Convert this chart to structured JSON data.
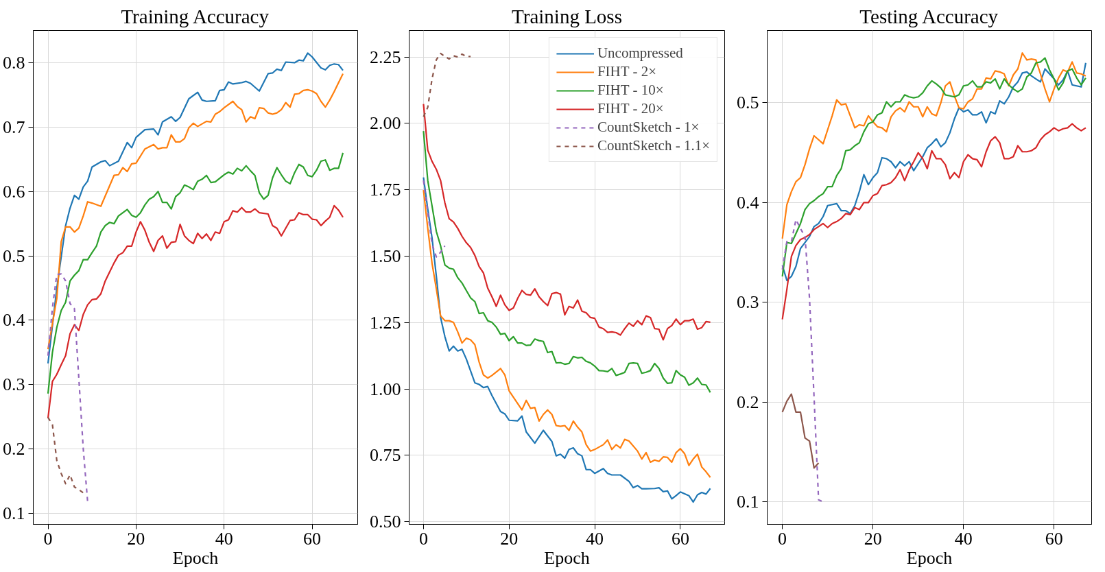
{
  "chart_data": [
    {
      "type": "line",
      "title": "Training Accuracy",
      "xlabel": "Epoch",
      "xlim": [
        -3.35,
        70.35
      ],
      "ylim": [
        0.083,
        0.85
      ],
      "xticks": [
        0,
        20,
        40,
        60
      ],
      "yticks": [
        0.1,
        0.2,
        0.3,
        0.4,
        0.5,
        0.6,
        0.7,
        0.8
      ],
      "grid": true,
      "legend": false,
      "line_style": "solid",
      "series": [
        {
          "color": "#1f77b4",
          "x": [
            0,
            2,
            4,
            5,
            6,
            7,
            8,
            9,
            10,
            12,
            13,
            14,
            16,
            18,
            19,
            20,
            22,
            24,
            25,
            26,
            28,
            29,
            30,
            32,
            34,
            35,
            36,
            38,
            39,
            40,
            41,
            42,
            44,
            45,
            46,
            48,
            50,
            51,
            52,
            53,
            54,
            56,
            57,
            58,
            59,
            60,
            62,
            63,
            64,
            65,
            66,
            67
          ],
          "values": [
            0.333,
            0.45,
            0.547,
            0.574,
            0.594,
            0.588,
            0.607,
            0.616,
            0.638,
            0.646,
            0.648,
            0.64,
            0.647,
            0.676,
            0.668,
            0.684,
            0.696,
            0.697,
            0.688,
            0.708,
            0.716,
            0.709,
            0.715,
            0.744,
            0.754,
            0.742,
            0.74,
            0.741,
            0.757,
            0.758,
            0.77,
            0.767,
            0.769,
            0.771,
            0.768,
            0.756,
            0.783,
            0.784,
            0.79,
            0.788,
            0.801,
            0.8,
            0.804,
            0.803,
            0.815,
            0.809,
            0.792,
            0.789,
            0.796,
            0.798,
            0.797,
            0.788
          ]
        },
        {
          "color": "#ff7f0e",
          "x": [
            0,
            2,
            3,
            4,
            5,
            6,
            7,
            8,
            9,
            10,
            12,
            14,
            15,
            16,
            17,
            18,
            19,
            20,
            22,
            24,
            25,
            26,
            27,
            28,
            29,
            30,
            31,
            32,
            33,
            34,
            36,
            37,
            38,
            39,
            40,
            42,
            43,
            44,
            45,
            46,
            47,
            48,
            49,
            50,
            51,
            52,
            53,
            54,
            55,
            56,
            57,
            58,
            59,
            60,
            61,
            62,
            63,
            64,
            65,
            66,
            67
          ],
          "values": [
            0.355,
            0.434,
            0.522,
            0.545,
            0.545,
            0.537,
            0.543,
            0.562,
            0.584,
            0.582,
            0.577,
            0.609,
            0.625,
            0.626,
            0.637,
            0.631,
            0.643,
            0.644,
            0.666,
            0.673,
            0.666,
            0.668,
            0.668,
            0.688,
            0.677,
            0.677,
            0.682,
            0.699,
            0.706,
            0.701,
            0.709,
            0.708,
            0.72,
            0.724,
            0.73,
            0.74,
            0.732,
            0.727,
            0.708,
            0.716,
            0.713,
            0.73,
            0.729,
            0.722,
            0.72,
            0.722,
            0.727,
            0.738,
            0.731,
            0.751,
            0.752,
            0.757,
            0.758,
            0.756,
            0.752,
            0.74,
            0.731,
            0.742,
            0.755,
            0.769,
            0.783
          ]
        },
        {
          "color": "#2ca02c",
          "x": [
            0,
            1,
            2,
            3,
            4,
            5,
            6,
            7,
            8,
            9,
            10,
            11,
            12,
            13,
            14,
            15,
            16,
            18,
            19,
            20,
            21,
            22,
            23,
            24,
            25,
            26,
            27,
            28,
            29,
            30,
            31,
            32,
            33,
            34,
            35,
            36,
            37,
            38,
            40,
            41,
            42,
            43,
            44,
            45,
            46,
            47,
            48,
            49,
            50,
            51,
            52,
            53,
            54,
            55,
            56,
            57,
            58,
            59,
            60,
            61,
            62,
            63,
            64,
            65,
            66,
            67
          ],
          "values": [
            0.286,
            0.35,
            0.389,
            0.415,
            0.428,
            0.461,
            0.47,
            0.477,
            0.494,
            0.494,
            0.505,
            0.515,
            0.537,
            0.547,
            0.552,
            0.55,
            0.562,
            0.572,
            0.563,
            0.56,
            0.567,
            0.579,
            0.588,
            0.592,
            0.6,
            0.583,
            0.583,
            0.573,
            0.592,
            0.598,
            0.61,
            0.607,
            0.603,
            0.616,
            0.619,
            0.625,
            0.614,
            0.615,
            0.626,
            0.63,
            0.627,
            0.636,
            0.632,
            0.64,
            0.632,
            0.625,
            0.598,
            0.588,
            0.594,
            0.621,
            0.637,
            0.626,
            0.616,
            0.612,
            0.629,
            0.642,
            0.638,
            0.625,
            0.623,
            0.633,
            0.647,
            0.649,
            0.633,
            0.636,
            0.636,
            0.66
          ]
        },
        {
          "color": "#d62728",
          "x": [
            0,
            1,
            2,
            3,
            4,
            5,
            6,
            7,
            8,
            9,
            10,
            11,
            12,
            13,
            14,
            15,
            16,
            17,
            18,
            19,
            20,
            21,
            22,
            23,
            24,
            25,
            26,
            27,
            28,
            29,
            30,
            31,
            32,
            33,
            34,
            35,
            36,
            37,
            38,
            39,
            40,
            41,
            42,
            43,
            44,
            45,
            46,
            47,
            48,
            50,
            51,
            52,
            53,
            54,
            55,
            56,
            57,
            58,
            59,
            60,
            61,
            62,
            63,
            64,
            65,
            66,
            67
          ],
          "values": [
            0.248,
            0.305,
            0.316,
            0.331,
            0.345,
            0.379,
            0.393,
            0.384,
            0.409,
            0.424,
            0.432,
            0.433,
            0.441,
            0.461,
            0.475,
            0.489,
            0.501,
            0.505,
            0.515,
            0.515,
            0.537,
            0.553,
            0.54,
            0.521,
            0.507,
            0.524,
            0.531,
            0.512,
            0.521,
            0.522,
            0.549,
            0.531,
            0.524,
            0.519,
            0.535,
            0.527,
            0.534,
            0.524,
            0.537,
            0.535,
            0.553,
            0.556,
            0.57,
            0.568,
            0.575,
            0.568,
            0.568,
            0.573,
            0.567,
            0.565,
            0.547,
            0.543,
            0.531,
            0.543,
            0.555,
            0.556,
            0.567,
            0.564,
            0.564,
            0.557,
            0.556,
            0.547,
            0.554,
            0.56,
            0.578,
            0.571,
            0.56
          ]
        },
        {
          "color": "#9467bd",
          "line_style": "dashed",
          "x": [
            0,
            1,
            2,
            3,
            4,
            5,
            6,
            7,
            8,
            9
          ],
          "values": [
            0.345,
            0.419,
            0.471,
            0.472,
            0.461,
            0.426,
            0.418,
            0.31,
            0.201,
            0.118
          ]
        },
        {
          "color": "#8c564b",
          "line_style": "dashed",
          "x": [
            0,
            1,
            2,
            3,
            4,
            5,
            6,
            7,
            8
          ],
          "values": [
            0.249,
            0.238,
            0.182,
            0.162,
            0.146,
            0.16,
            0.141,
            0.137,
            0.132
          ]
        }
      ]
    },
    {
      "type": "line",
      "title": "Training Loss",
      "xlabel": "Epoch",
      "xlim": [
        -3.35,
        70.35
      ],
      "ylim": [
        0.49,
        2.35
      ],
      "xticks": [
        0,
        20,
        40,
        60
      ],
      "yticks": [
        {
          "value": 0.5,
          "label": "0.50"
        },
        {
          "value": 0.75,
          "label": "0.75"
        },
        {
          "value": 1.0,
          "label": "1.00"
        },
        {
          "value": 1.25,
          "label": "1.25"
        },
        {
          "value": 1.5,
          "label": "1.50"
        },
        {
          "value": 1.75,
          "label": "1.75"
        },
        {
          "value": 2.0,
          "label": "2.00"
        },
        {
          "value": 2.25,
          "label": "2.25"
        }
      ],
      "grid": true,
      "legend": "top right",
      "line_style": "solid",
      "series": [
        {
          "name": "Uncompressed",
          "color": "#1f77b4",
          "x": [
            0,
            1,
            2,
            3,
            4,
            5,
            6,
            7,
            8,
            9,
            10,
            12,
            13,
            14,
            15,
            16,
            18,
            19,
            20,
            22,
            23,
            24,
            26,
            28,
            30,
            31,
            32,
            33,
            34,
            35,
            36,
            37,
            38,
            39,
            40,
            42,
            43,
            44,
            46,
            48,
            49,
            50,
            51,
            52,
            54,
            55,
            56,
            57,
            58,
            59,
            60,
            62,
            63,
            64,
            65,
            66,
            67
          ],
          "values": [
            1.797,
            1.677,
            1.569,
            1.425,
            1.269,
            1.197,
            1.143,
            1.161,
            1.143,
            1.149,
            1.113,
            1.023,
            1.017,
            1.005,
            1.009,
            0.975,
            0.915,
            0.906,
            0.882,
            0.88,
            0.898,
            0.838,
            0.796,
            0.844,
            0.802,
            0.748,
            0.754,
            0.739,
            0.772,
            0.778,
            0.756,
            0.748,
            0.696,
            0.696,
            0.682,
            0.7,
            0.682,
            0.676,
            0.676,
            0.652,
            0.628,
            0.636,
            0.624,
            0.624,
            0.625,
            0.628,
            0.613,
            0.616,
            0.586,
            0.598,
            0.612,
            0.598,
            0.574,
            0.601,
            0.61,
            0.604,
            0.625
          ]
        },
        {
          "name": "FIHT - 2×",
          "color": "#ff7f0e",
          "x": [
            0,
            1,
            2,
            3,
            4,
            5,
            6,
            7,
            8,
            9,
            10,
            11,
            12,
            13,
            14,
            15,
            16,
            18,
            19,
            20,
            22,
            23,
            24,
            25,
            26,
            27,
            28,
            29,
            30,
            31,
            32,
            33,
            34,
            35,
            36,
            37,
            38,
            39,
            40,
            42,
            43,
            44,
            45,
            46,
            47,
            48,
            50,
            51,
            52,
            53,
            54,
            55,
            56,
            57,
            58,
            59,
            60,
            61,
            62,
            63,
            64,
            65,
            66,
            67
          ],
          "values": [
            1.749,
            1.605,
            1.473,
            1.377,
            1.275,
            1.257,
            1.257,
            1.251,
            1.215,
            1.173,
            1.191,
            1.185,
            1.167,
            1.101,
            1.053,
            1.041,
            1.051,
            1.077,
            1.053,
            0.993,
            0.945,
            0.921,
            0.957,
            0.927,
            0.93,
            0.879,
            0.904,
            0.921,
            0.904,
            0.862,
            0.859,
            0.862,
            0.844,
            0.879,
            0.856,
            0.838,
            0.79,
            0.766,
            0.772,
            0.79,
            0.808,
            0.772,
            0.79,
            0.778,
            0.81,
            0.804,
            0.766,
            0.736,
            0.76,
            0.724,
            0.732,
            0.727,
            0.744,
            0.742,
            0.724,
            0.76,
            0.775,
            0.756,
            0.712,
            0.736,
            0.754,
            0.706,
            0.688,
            0.667
          ]
        },
        {
          "name": "FIHT - 10×",
          "color": "#2ca02c",
          "x": [
            0,
            1,
            2,
            3,
            4,
            5,
            6,
            7,
            8,
            9,
            10,
            11,
            12,
            13,
            14,
            15,
            16,
            17,
            18,
            19,
            20,
            21,
            22,
            23,
            24,
            25,
            26,
            27,
            28,
            29,
            30,
            31,
            32,
            33,
            34,
            35,
            36,
            37,
            38,
            39,
            40,
            41,
            42,
            43,
            44,
            45,
            46,
            47,
            48,
            49,
            50,
            51,
            52,
            53,
            54,
            55,
            56,
            57,
            58,
            59,
            60,
            61,
            62,
            63,
            64,
            65,
            66,
            67
          ],
          "values": [
            1.971,
            1.785,
            1.689,
            1.593,
            1.539,
            1.467,
            1.455,
            1.451,
            1.419,
            1.399,
            1.371,
            1.343,
            1.329,
            1.284,
            1.287,
            1.257,
            1.251,
            1.233,
            1.206,
            1.209,
            1.182,
            1.197,
            1.173,
            1.173,
            1.164,
            1.165,
            1.188,
            1.182,
            1.179,
            1.137,
            1.141,
            1.098,
            1.099,
            1.093,
            1.096,
            1.122,
            1.117,
            1.119,
            1.104,
            1.098,
            1.086,
            1.069,
            1.068,
            1.065,
            1.077,
            1.051,
            1.056,
            1.062,
            1.096,
            1.098,
            1.096,
            1.059,
            1.063,
            1.069,
            1.096,
            1.077,
            1.041,
            1.021,
            1.023,
            1.069,
            1.053,
            1.044,
            1.014,
            1.023,
            1.041,
            1.017,
            1.015,
            0.987
          ]
        },
        {
          "name": "FIHT - 20×",
          "color": "#d62728",
          "x": [
            0,
            1,
            2,
            3,
            4,
            5,
            6,
            7,
            8,
            9,
            10,
            11,
            12,
            13,
            14,
            15,
            16,
            17,
            18,
            19,
            20,
            21,
            22,
            23,
            24,
            25,
            26,
            27,
            28,
            29,
            30,
            31,
            32,
            33,
            34,
            35,
            36,
            37,
            38,
            39,
            40,
            41,
            42,
            43,
            44,
            45,
            46,
            47,
            48,
            49,
            50,
            51,
            52,
            53,
            54,
            55,
            56,
            57,
            58,
            59,
            60,
            61,
            62,
            63,
            64,
            65,
            66,
            67
          ],
          "values": [
            2.073,
            1.899,
            1.857,
            1.827,
            1.785,
            1.701,
            1.641,
            1.629,
            1.605,
            1.575,
            1.551,
            1.533,
            1.503,
            1.461,
            1.437,
            1.38,
            1.347,
            1.311,
            1.353,
            1.317,
            1.296,
            1.305,
            1.341,
            1.371,
            1.356,
            1.353,
            1.377,
            1.347,
            1.329,
            1.314,
            1.359,
            1.363,
            1.357,
            1.279,
            1.311,
            1.305,
            1.335,
            1.293,
            1.287,
            1.269,
            1.266,
            1.233,
            1.227,
            1.213,
            1.215,
            1.212,
            1.203,
            1.227,
            1.248,
            1.236,
            1.257,
            1.242,
            1.275,
            1.269,
            1.227,
            1.225,
            1.185,
            1.227,
            1.239,
            1.263,
            1.242,
            1.257,
            1.257,
            1.263,
            1.225,
            1.231,
            1.254,
            1.251
          ]
        },
        {
          "name": "CountSketch - 1×",
          "color": "#9467bd",
          "line_style": "dashed",
          "x": [
            0,
            1,
            2,
            3,
            4,
            5
          ],
          "values": [
            1.785,
            1.665,
            1.545,
            1.497,
            1.515,
            1.539
          ]
        },
        {
          "name": "CountSketch - 1.1×",
          "color": "#8c564b",
          "line_style": "dashed",
          "x": [
            0,
            1,
            2,
            3,
            4,
            5,
            6,
            7,
            8,
            9,
            10,
            11
          ],
          "values": [
            2.025,
            2.061,
            2.168,
            2.24,
            2.264,
            2.252,
            2.243,
            2.255,
            2.25,
            2.261,
            2.252,
            2.252
          ]
        }
      ]
    },
    {
      "type": "line",
      "title": "Testing Accuracy",
      "xlabel": "Epoch",
      "xlim": [
        -3.35,
        68.3
      ],
      "ylim": [
        0.0775,
        0.5725
      ],
      "xticks": [
        0,
        20,
        40,
        60
      ],
      "yticks": [
        0.1,
        0.2,
        0.3,
        0.4,
        0.5
      ],
      "grid": true,
      "legend": false,
      "line_style": "solid",
      "series": [
        {
          "color": "#1f77b4",
          "x": [
            0,
            1,
            2,
            3,
            4,
            5,
            6,
            7,
            8,
            9,
            10,
            12,
            13,
            14,
            15,
            16,
            17,
            18,
            19,
            20,
            21,
            22,
            23,
            24,
            25,
            26,
            27,
            28,
            29,
            30,
            31,
            32,
            33,
            34,
            35,
            36,
            37,
            38,
            39,
            40,
            41,
            42,
            43,
            44,
            45,
            46,
            47,
            48,
            49,
            50,
            51,
            52,
            53,
            54,
            55,
            56,
            57,
            58,
            59,
            60,
            61,
            62,
            63,
            64,
            65,
            66,
            67
          ],
          "values": [
            0.337,
            0.322,
            0.326,
            0.336,
            0.354,
            0.36,
            0.366,
            0.376,
            0.379,
            0.386,
            0.397,
            0.399,
            0.392,
            0.392,
            0.389,
            0.397,
            0.411,
            0.428,
            0.418,
            0.425,
            0.43,
            0.445,
            0.444,
            0.441,
            0.435,
            0.441,
            0.437,
            0.441,
            0.432,
            0.439,
            0.446,
            0.455,
            0.459,
            0.464,
            0.456,
            0.46,
            0.47,
            0.484,
            0.495,
            0.491,
            0.493,
            0.488,
            0.488,
            0.491,
            0.48,
            0.491,
            0.489,
            0.502,
            0.499,
            0.506,
            0.516,
            0.521,
            0.53,
            0.531,
            0.527,
            0.524,
            0.521,
            0.534,
            0.529,
            0.524,
            0.518,
            0.523,
            0.532,
            0.518,
            0.517,
            0.516,
            0.54
          ]
        },
        {
          "color": "#ff7f0e",
          "x": [
            0,
            1,
            2,
            3,
            4,
            5,
            6,
            7,
            8,
            9,
            10,
            11,
            12,
            13,
            14,
            15,
            16,
            17,
            18,
            19,
            20,
            21,
            22,
            23,
            24,
            25,
            26,
            27,
            28,
            29,
            30,
            31,
            32,
            33,
            34,
            35,
            36,
            37,
            38,
            39,
            40,
            41,
            42,
            43,
            44,
            45,
            46,
            47,
            48,
            49,
            50,
            51,
            52,
            53,
            54,
            55,
            56,
            57,
            58,
            59,
            60,
            61,
            62,
            63,
            64,
            65,
            66,
            67
          ],
          "values": [
            0.364,
            0.398,
            0.411,
            0.421,
            0.425,
            0.438,
            0.454,
            0.467,
            0.463,
            0.459,
            0.473,
            0.487,
            0.503,
            0.498,
            0.499,
            0.487,
            0.475,
            0.478,
            0.477,
            0.487,
            0.481,
            0.476,
            0.475,
            0.471,
            0.486,
            0.492,
            0.495,
            0.491,
            0.501,
            0.496,
            0.496,
            0.486,
            0.496,
            0.489,
            0.487,
            0.5,
            0.517,
            0.521,
            0.507,
            0.495,
            0.494,
            0.501,
            0.504,
            0.514,
            0.514,
            0.525,
            0.524,
            0.532,
            0.531,
            0.529,
            0.517,
            0.528,
            0.534,
            0.55,
            0.543,
            0.544,
            0.543,
            0.529,
            0.514,
            0.501,
            0.514,
            0.525,
            0.533,
            0.531,
            0.541,
            0.53,
            0.529,
            0.527
          ]
        },
        {
          "color": "#2ca02c",
          "x": [
            0,
            1,
            2,
            3,
            4,
            5,
            6,
            7,
            8,
            9,
            10,
            11,
            12,
            13,
            14,
            15,
            16,
            17,
            18,
            19,
            20,
            21,
            22,
            23,
            24,
            25,
            26,
            27,
            28,
            29,
            30,
            31,
            32,
            33,
            34,
            35,
            36,
            37,
            38,
            39,
            40,
            41,
            42,
            43,
            44,
            45,
            46,
            47,
            48,
            49,
            50,
            51,
            52,
            53,
            54,
            55,
            56,
            57,
            58,
            59,
            60,
            61,
            62,
            63,
            64,
            65,
            66,
            67
          ],
          "values": [
            0.326,
            0.36,
            0.359,
            0.369,
            0.379,
            0.393,
            0.399,
            0.402,
            0.406,
            0.409,
            0.416,
            0.416,
            0.427,
            0.434,
            0.452,
            0.453,
            0.457,
            0.46,
            0.471,
            0.479,
            0.481,
            0.488,
            0.49,
            0.501,
            0.496,
            0.501,
            0.501,
            0.508,
            0.506,
            0.505,
            0.506,
            0.51,
            0.517,
            0.522,
            0.519,
            0.515,
            0.508,
            0.507,
            0.506,
            0.508,
            0.517,
            0.518,
            0.522,
            0.516,
            0.516,
            0.521,
            0.52,
            0.524,
            0.514,
            0.524,
            0.518,
            0.514,
            0.511,
            0.514,
            0.526,
            0.53,
            0.54,
            0.541,
            0.545,
            0.533,
            0.524,
            0.513,
            0.52,
            0.532,
            0.534,
            0.525,
            0.518,
            0.525
          ]
        },
        {
          "color": "#d62728",
          "x": [
            0,
            1,
            2,
            3,
            4,
            5,
            6,
            7,
            8,
            9,
            10,
            11,
            12,
            13,
            14,
            15,
            16,
            17,
            18,
            19,
            20,
            21,
            22,
            23,
            24,
            25,
            26,
            27,
            28,
            29,
            30,
            31,
            32,
            33,
            34,
            35,
            36,
            37,
            38,
            39,
            40,
            41,
            42,
            43,
            44,
            45,
            46,
            47,
            48,
            49,
            50,
            51,
            52,
            53,
            54,
            55,
            56,
            57,
            58,
            59,
            60,
            61,
            62,
            63,
            64,
            65,
            66,
            67
          ],
          "values": [
            0.283,
            0.313,
            0.346,
            0.357,
            0.363,
            0.365,
            0.368,
            0.373,
            0.376,
            0.379,
            0.375,
            0.379,
            0.381,
            0.384,
            0.389,
            0.388,
            0.395,
            0.393,
            0.4,
            0.4,
            0.407,
            0.409,
            0.417,
            0.418,
            0.42,
            0.425,
            0.433,
            0.422,
            0.433,
            0.441,
            0.45,
            0.444,
            0.434,
            0.452,
            0.444,
            0.444,
            0.438,
            0.424,
            0.43,
            0.425,
            0.441,
            0.448,
            0.444,
            0.443,
            0.436,
            0.451,
            0.462,
            0.466,
            0.46,
            0.444,
            0.444,
            0.446,
            0.457,
            0.451,
            0.451,
            0.452,
            0.455,
            0.463,
            0.468,
            0.471,
            0.475,
            0.472,
            0.474,
            0.475,
            0.479,
            0.475,
            0.472,
            0.475
          ]
        },
        {
          "color": "#9467bd",
          "line_style": "dashed",
          "x": [
            0,
            1,
            2,
            3,
            4,
            5,
            6,
            7,
            8,
            9
          ],
          "values": [
            0.333,
            0.361,
            0.361,
            0.383,
            0.374,
            0.366,
            0.304,
            0.205,
            0.102,
            0.1
          ]
        },
        {
          "color": "#8c564b",
          "line_style": "solid",
          "x": [
            0,
            1,
            2,
            3,
            4,
            5,
            6,
            7,
            8
          ],
          "values": [
            0.19,
            0.201,
            0.208,
            0.19,
            0.19,
            0.164,
            0.161,
            0.134,
            0.139
          ]
        }
      ]
    }
  ]
}
